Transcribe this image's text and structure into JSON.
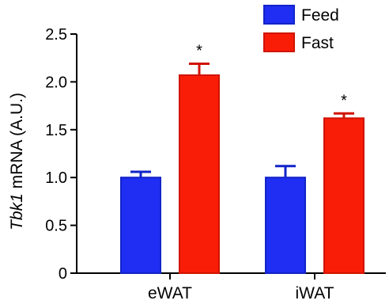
{
  "chart_data": {
    "type": "bar",
    "categories": [
      "eWAT",
      "iWAT"
    ],
    "series": [
      {
        "name": "Feed",
        "color": "#1f2ef2",
        "edge": "#1224c8",
        "values": [
          1.0,
          1.0
        ],
        "errors": [
          0.06,
          0.12
        ]
      },
      {
        "name": "Fast",
        "color": "#f91d08",
        "edge": "#d01400",
        "values": [
          2.07,
          1.62
        ],
        "errors": [
          0.12,
          0.05
        ]
      }
    ],
    "ylabel_italic": "Tbk1",
    "ylabel_rest": " mRNA (A.U.)",
    "ylim": [
      0,
      2.5
    ],
    "yticks": [
      "0",
      "0.5",
      "1.0",
      "1.5",
      "2.0",
      "2.5"
    ],
    "significance": [
      "*",
      "*"
    ],
    "legend_position": "top-right",
    "grid": false
  }
}
